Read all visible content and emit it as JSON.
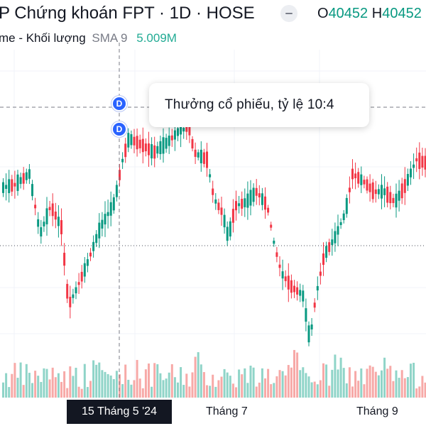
{
  "header": {
    "title": "P Chứng khoán FPT · 1D · HOSE",
    "ohlc_open_label": "O",
    "ohlc_open_value": "40452",
    "ohlc_high_label": "H",
    "ohlc_high_value": "40452"
  },
  "volume_legend": {
    "label": "me - Khối lượng",
    "indicator": "SMA 9",
    "value": "5.009M"
  },
  "tooltip": {
    "text": "Thưởng cổ phiếu, tỷ lệ 10:4"
  },
  "event_markers": [
    {
      "label": "D"
    },
    {
      "label": "D"
    }
  ],
  "x_axis": {
    "selected_date": "15 Tháng 5 '24",
    "ticks": [
      "Tháng 7",
      "Tháng 9"
    ]
  },
  "colors": {
    "up": "#089981",
    "down": "#f23645",
    "up_volume": "#8fd4c8",
    "down_volume": "#f7a9a7",
    "marker": "#2962ff",
    "badge": "#131722"
  }
}
